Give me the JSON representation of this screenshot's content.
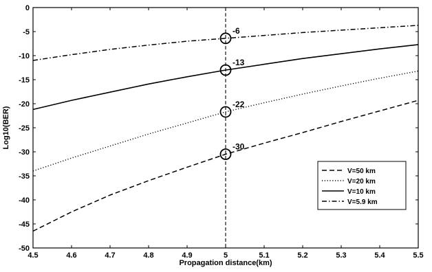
{
  "chart_data": {
    "type": "line",
    "title": "",
    "xlabel": "Propagation distance(km)",
    "ylabel": "Log10(BER)",
    "xlim": [
      4.5,
      5.5
    ],
    "ylim": [
      -50,
      0
    ],
    "xticks": [
      4.5,
      4.6,
      4.7,
      4.8,
      4.9,
      5.0,
      5.1,
      5.2,
      5.3,
      5.4,
      5.5
    ],
    "xtick_labels": [
      "4.5",
      "4.6",
      "4.7",
      "4.8",
      "4.9",
      "5",
      "5.1",
      "5.2",
      "5.3",
      "5.4",
      "5.5"
    ],
    "yticks": [
      0,
      -5,
      -10,
      -15,
      -20,
      -25,
      -30,
      -35,
      -40,
      -45,
      -50
    ],
    "ytick_labels": [
      "0",
      "-5",
      "-10",
      "-15",
      "-20",
      "-25",
      "-30",
      "-35",
      "-40",
      "-45",
      "-50"
    ],
    "grid": false,
    "legend_position": "bottom-right",
    "x": [
      4.5,
      4.6,
      4.7,
      4.8,
      4.9,
      5.0,
      5.1,
      5.2,
      5.3,
      5.4,
      5.5
    ],
    "series": [
      {
        "name": "V=50 km",
        "style": "dashed",
        "values": [
          -46.5,
          -42.5,
          -39.0,
          -36.0,
          -33.2,
          -30.5,
          -28.2,
          -26.0,
          -23.7,
          -21.5,
          -19.3
        ]
      },
      {
        "name": "V=20 km",
        "style": "dotted",
        "values": [
          -34.0,
          -31.3,
          -28.8,
          -26.3,
          -24.0,
          -21.7,
          -19.8,
          -18.0,
          -16.3,
          -14.7,
          -13.2
        ]
      },
      {
        "name": "V=10 km",
        "style": "solid",
        "values": [
          -21.2,
          -19.3,
          -17.6,
          -15.9,
          -14.4,
          -13.0,
          -11.8,
          -10.6,
          -9.6,
          -8.6,
          -7.7
        ]
      },
      {
        "name": "V=5.9 km",
        "style": "dashdot",
        "values": [
          -11.0,
          -9.8,
          -8.7,
          -7.8,
          -7.0,
          -6.4,
          -5.8,
          -5.2,
          -4.7,
          -4.2,
          -3.7
        ]
      }
    ],
    "vertical_line_x": 5.0,
    "markers": [
      {
        "x": 5.0,
        "y": -6.4,
        "label": "-6"
      },
      {
        "x": 5.0,
        "y": -13.0,
        "label": "-13"
      },
      {
        "x": 5.0,
        "y": -21.7,
        "label": "-22"
      },
      {
        "x": 5.0,
        "y": -30.5,
        "label": "-30"
      }
    ]
  }
}
